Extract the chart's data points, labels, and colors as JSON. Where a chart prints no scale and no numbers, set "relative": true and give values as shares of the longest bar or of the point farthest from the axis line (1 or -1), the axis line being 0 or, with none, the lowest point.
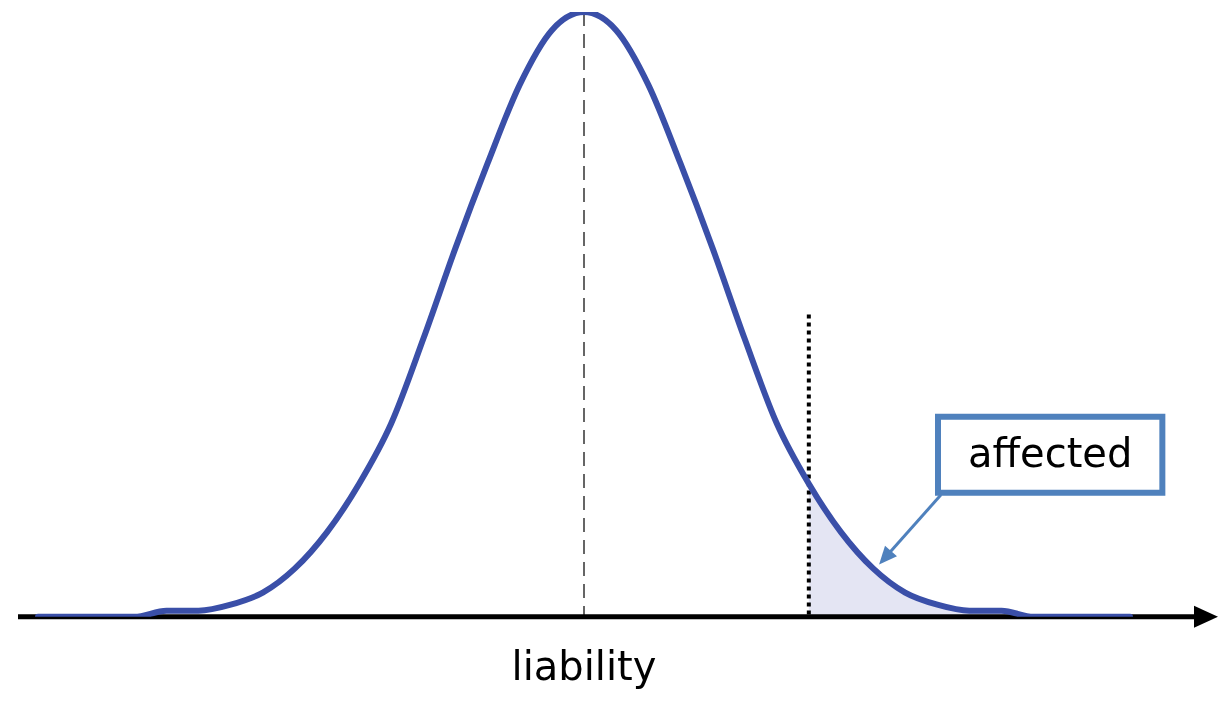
{
  "chart_data": {
    "type": "line",
    "relative": true,
    "xlabel": "liability",
    "marker": "none",
    "categories": [
      null,
      null,
      null,
      null,
      null,
      null,
      null,
      null,
      null,
      null,
      null,
      null,
      null,
      null,
      null,
      null,
      null,
      null,
      null,
      null,
      null,
      null,
      null,
      null,
      null,
      null,
      null,
      null,
      null,
      null,
      null,
      null,
      null,
      null,
      null
    ],
    "series": [
      {
        "color": "#3a4fa8",
        "values": [
          0,
          0,
          0,
          0,
          0.01,
          0.01,
          0.02,
          0.04,
          0.08,
          0.14,
          0.22,
          0.32,
          0.46,
          0.61,
          0.75,
          0.88,
          0.97,
          1,
          0.97,
          0.88,
          0.75,
          0.61,
          0.46,
          0.32,
          0.22,
          0.14,
          0.08,
          0.04,
          0.02,
          0.01,
          0.01,
          0,
          0,
          0,
          0
        ]
      }
    ],
    "annotations": [
      "affected"
    ]
  }
}
